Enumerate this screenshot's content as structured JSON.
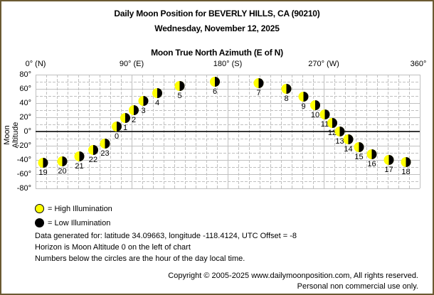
{
  "header": {
    "title": "Daily Moon Position for BEVERLY HILLS, CA (90210)",
    "date": "Wednesday, November 12, 2025",
    "axis_title": "Moon True North Azimuth (E of N)"
  },
  "axes": {
    "x_ticks": [
      "0° (N)",
      "90° (E)",
      "180° (S)",
      "270° (W)",
      "360°"
    ],
    "y_ticks": [
      "80°",
      "60°",
      "40°",
      "20°",
      "0°",
      "-20°",
      "-40°",
      "-60°",
      "-80°"
    ],
    "y_label": "Moon Altitude"
  },
  "legend": {
    "high": "= High Illumination",
    "low": "= Low Illumination"
  },
  "info": {
    "line1": "Data generated for: latitude 34.09663, longitude -118.4124, UTC Offset = -8",
    "line2": "Horizon is Moon Altitude 0 on the left of chart",
    "line3": "Numbers below the circles are the hour of the day local time."
  },
  "footer": {
    "copyright": "Copyright © 2005-2025 www.dailymoonposition.com, All rights reserved.",
    "usage": "Personal non commercial use only."
  },
  "colors": {
    "border": "#6b5a32",
    "moon_lit": "#ffff00",
    "moon_dark": "#000000",
    "grid": "#c0c0c0"
  },
  "chart_data": {
    "type": "scatter",
    "title": "Daily Moon Position for BEVERLY HILLS, CA (90210)",
    "subtitle": "Wednesday, November 12, 2025",
    "xlabel": "Moon True North Azimuth (E of N)",
    "ylabel": "Moon Altitude",
    "xlim": [
      0,
      360
    ],
    "ylim": [
      -80,
      80
    ],
    "x_tick_labels": [
      "0° (N)",
      "90° (E)",
      "180° (S)",
      "270° (W)",
      "360°"
    ],
    "y_tick_labels": [
      "80°",
      "60°",
      "40°",
      "20°",
      "0°",
      "-20°",
      "-40°",
      "-60°",
      "-80°"
    ],
    "grid": true,
    "legend": [
      "High Illumination",
      "Low Illumination"
    ],
    "points": [
      {
        "hour": 0,
        "azimuth": 76,
        "altitude": 7
      },
      {
        "hour": 1,
        "azimuth": 84,
        "altitude": 19
      },
      {
        "hour": 2,
        "azimuth": 92,
        "altitude": 30
      },
      {
        "hour": 3,
        "azimuth": 101,
        "altitude": 43
      },
      {
        "hour": 4,
        "azimuth": 114,
        "altitude": 54
      },
      {
        "hour": 5,
        "azimuth": 135,
        "altitude": 64
      },
      {
        "hour": 6,
        "azimuth": 168,
        "altitude": 70
      },
      {
        "hour": 7,
        "azimuth": 209,
        "altitude": 68
      },
      {
        "hour": 8,
        "azimuth": 235,
        "altitude": 60
      },
      {
        "hour": 9,
        "azimuth": 251,
        "altitude": 49
      },
      {
        "hour": 10,
        "azimuth": 262,
        "altitude": 37
      },
      {
        "hour": 11,
        "azimuth": 271,
        "altitude": 24
      },
      {
        "hour": 12,
        "azimuth": 278,
        "altitude": 12
      },
      {
        "hour": 13,
        "azimuth": 285,
        "altitude": 0
      },
      {
        "hour": 14,
        "azimuth": 293,
        "altitude": -11
      },
      {
        "hour": 15,
        "azimuth": 303,
        "altitude": -22
      },
      {
        "hour": 16,
        "azimuth": 315,
        "altitude": -32
      },
      {
        "hour": 17,
        "azimuth": 331,
        "altitude": -40
      },
      {
        "hour": 18,
        "azimuth": 347,
        "altitude": -43
      },
      {
        "hour": 19,
        "azimuth": 7,
        "altitude": -44
      },
      {
        "hour": 20,
        "azimuth": 25,
        "altitude": -42
      },
      {
        "hour": 21,
        "azimuth": 41,
        "altitude": -35
      },
      {
        "hour": 22,
        "azimuth": 54,
        "altitude": -26
      },
      {
        "hour": 23,
        "azimuth": 65,
        "altitude": -17
      }
    ]
  }
}
